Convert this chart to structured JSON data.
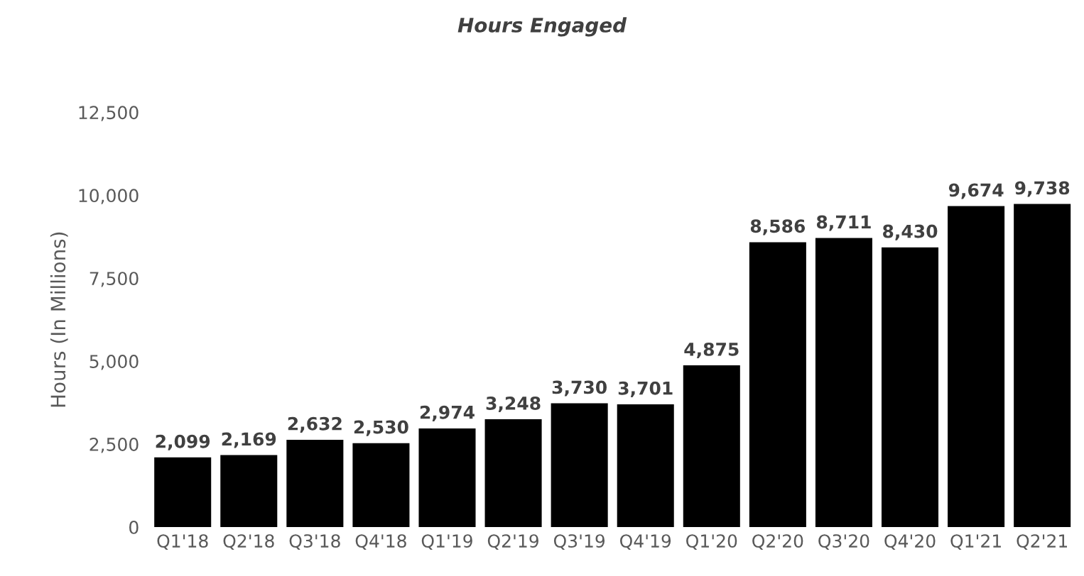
{
  "chart_data": {
    "type": "bar",
    "title": "Hours Engaged",
    "ylabel": "Hours (In Millions)",
    "categories": [
      "Q1'18",
      "Q2'18",
      "Q3'18",
      "Q4'18",
      "Q1'19",
      "Q2'19",
      "Q3'19",
      "Q4'19",
      "Q1'20",
      "Q2'20",
      "Q3'20",
      "Q4'20",
      "Q1'21",
      "Q2'21"
    ],
    "values": [
      2099,
      2169,
      2632,
      2530,
      2974,
      3248,
      3730,
      3701,
      4875,
      8586,
      8711,
      8430,
      9674,
      9738
    ],
    "value_labels": [
      "2,099",
      "2,169",
      "2,632",
      "2,530",
      "2,974",
      "3,248",
      "3,730",
      "3,701",
      "4,875",
      "8,586",
      "8,711",
      "8,430",
      "9,674",
      "9,738"
    ],
    "color": "#000000",
    "ylim": [
      0,
      12500
    ],
    "yticks": [
      {
        "value": 0,
        "label": "0"
      },
      {
        "value": 2500,
        "label": "2,500"
      },
      {
        "value": 5000,
        "label": "5,000"
      },
      {
        "value": 7500,
        "label": "7,500"
      },
      {
        "value": 10000,
        "label": "10,000"
      },
      {
        "value": 12500,
        "label": "12,500"
      }
    ],
    "grid": false,
    "legend": false
  }
}
